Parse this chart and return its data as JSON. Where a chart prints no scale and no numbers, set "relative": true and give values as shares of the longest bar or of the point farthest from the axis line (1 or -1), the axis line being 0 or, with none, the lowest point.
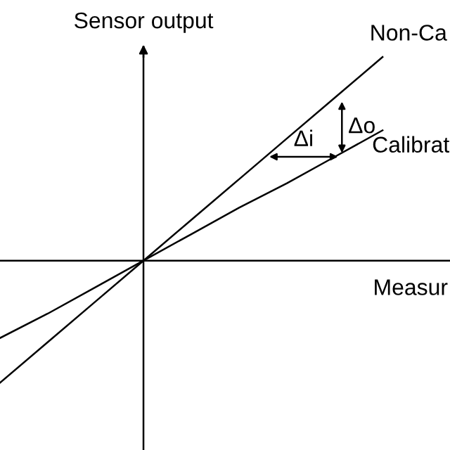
{
  "chart_data": {
    "type": "line",
    "relative": true,
    "xlabel": "Measur",
    "ylabel": "Sensor output",
    "categories": [
      null,
      null,
      null,
      null,
      null,
      null,
      null,
      null,
      null
    ],
    "series": [
      {
        "name": "Non-Ca",
        "color": "#000000",
        "values": [
          -0.6,
          -0.4,
          -0.2,
          0,
          0.2,
          0.4,
          0.6,
          0.8,
          1.0
        ]
      },
      {
        "name": "Calibrat",
        "color": "#000000",
        "values": [
          -0.38,
          -0.26,
          -0.13,
          0,
          0.13,
          0.26,
          0.38,
          0.51,
          0.64
        ]
      }
    ],
    "annotations": [
      "Δo",
      "Δi"
    ],
    "marker": "none",
    "line_style": "solid"
  }
}
